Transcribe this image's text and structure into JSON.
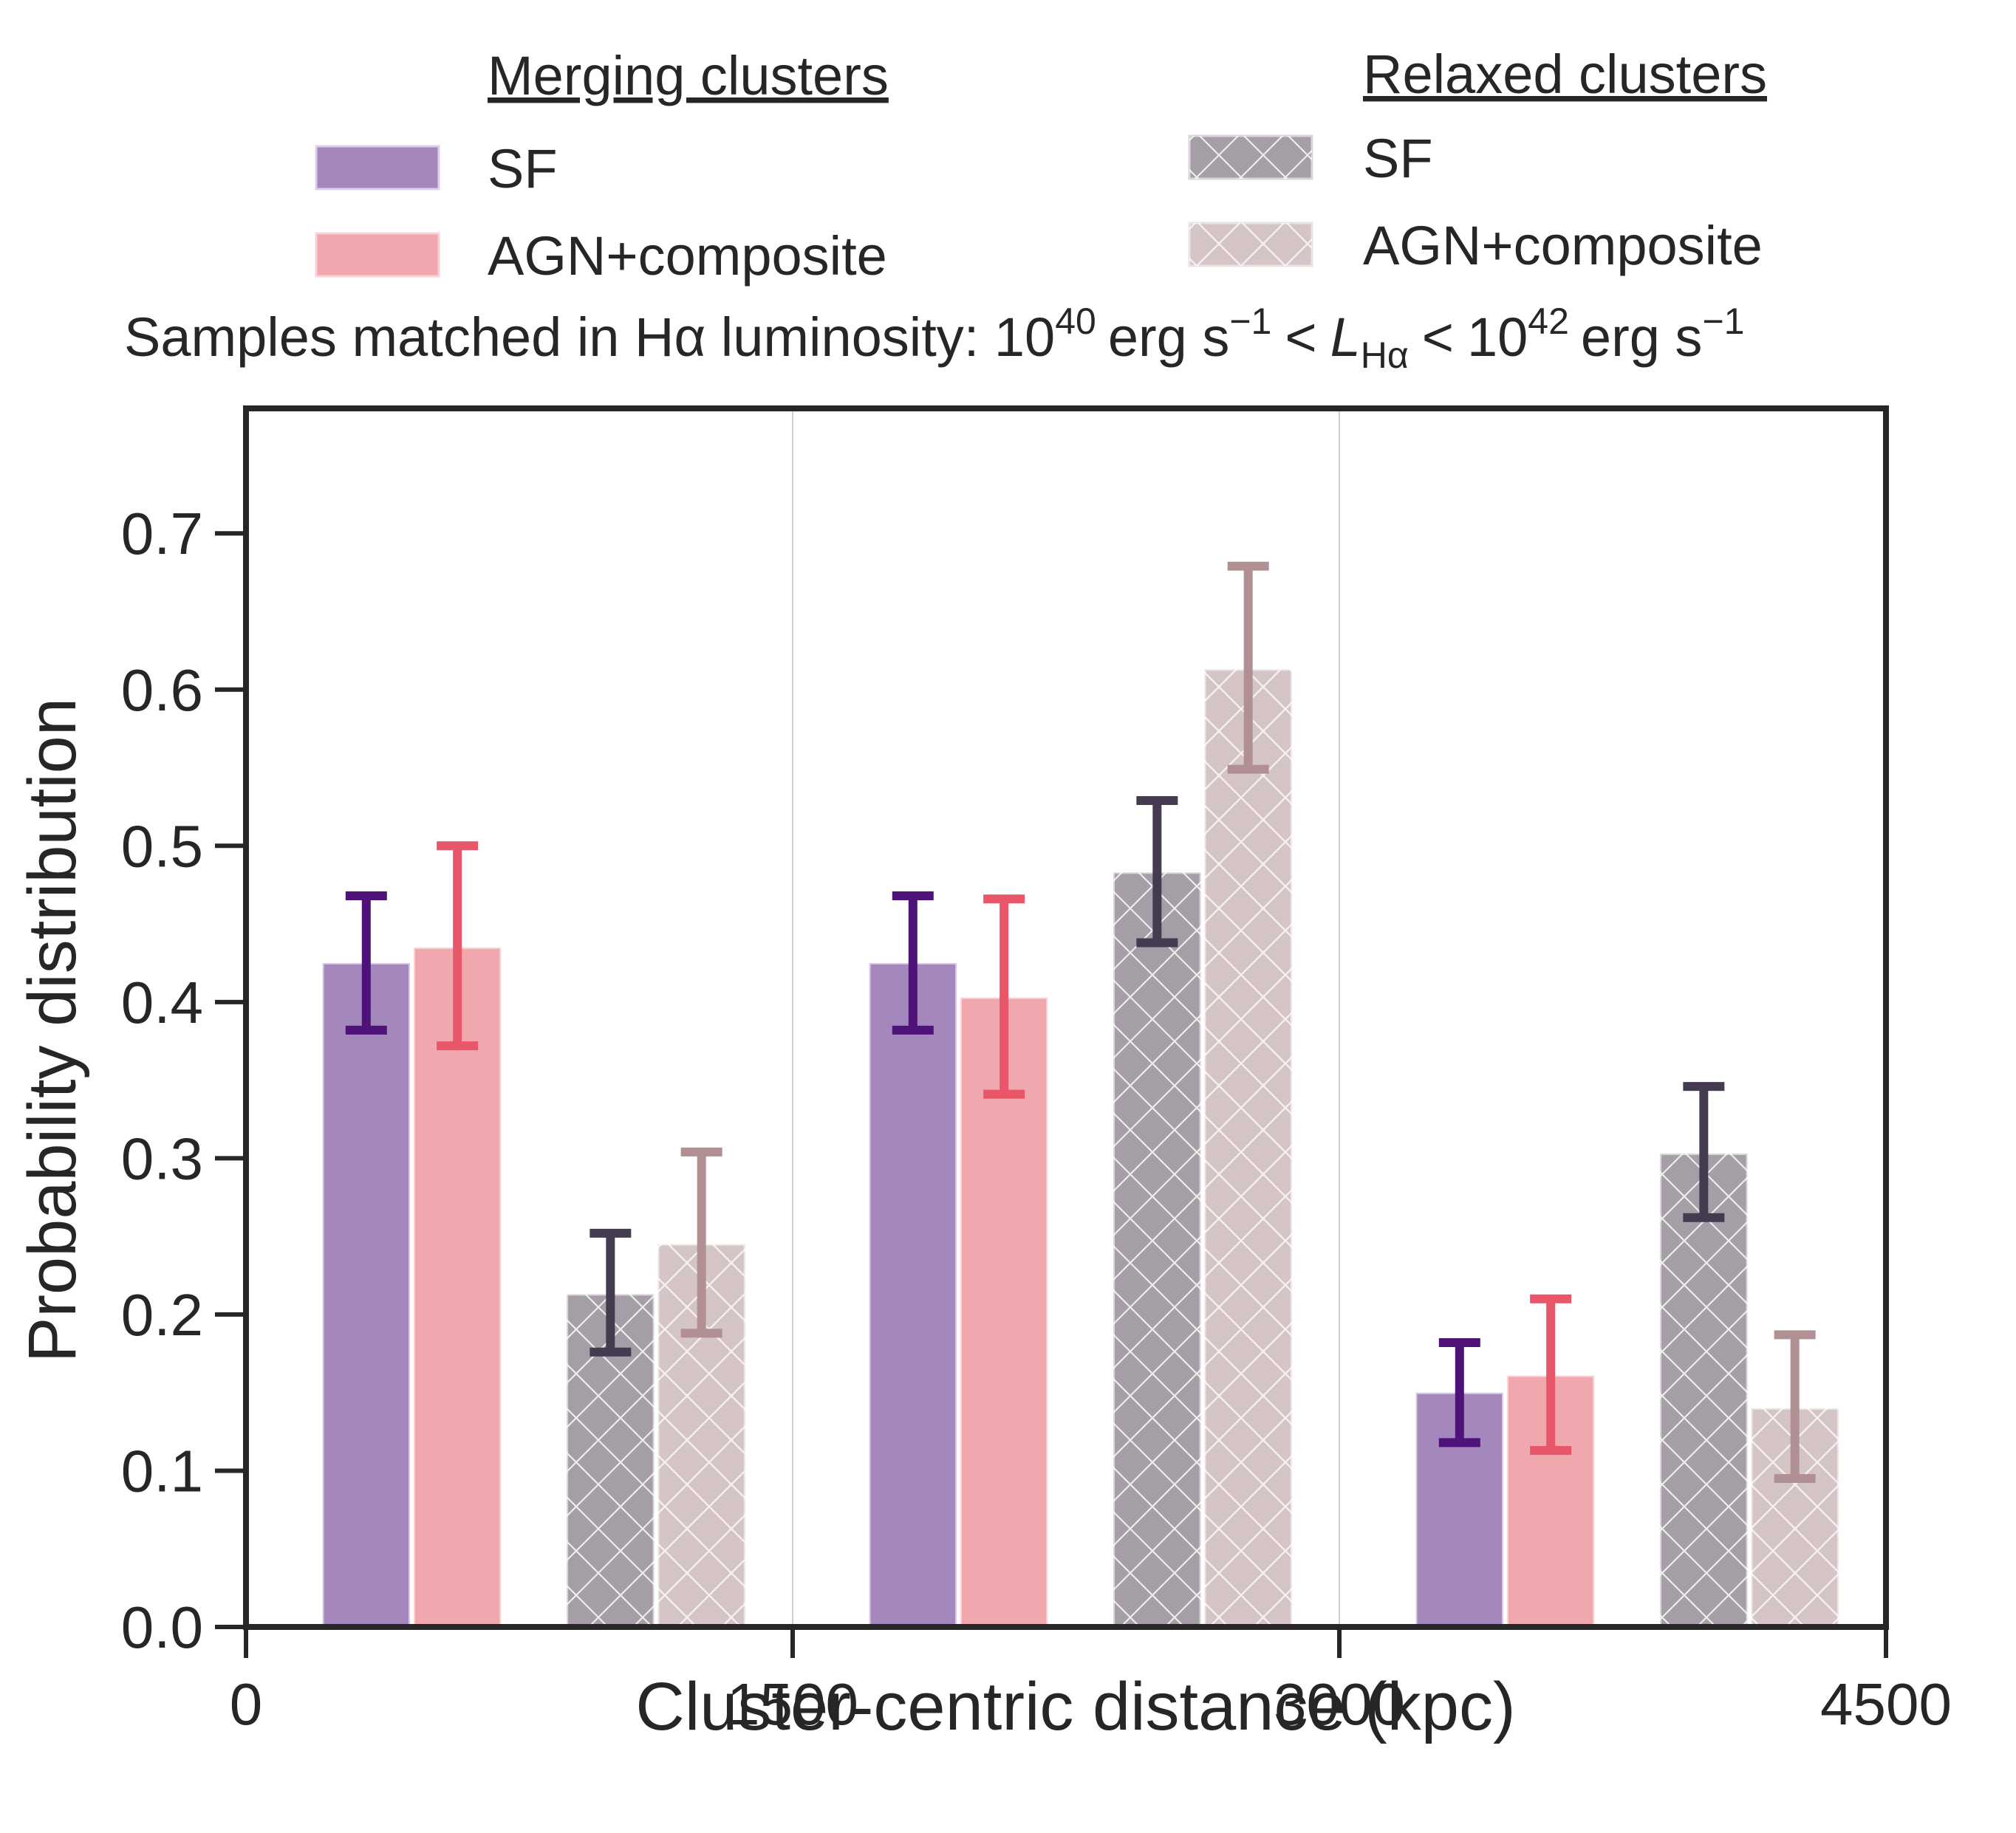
{
  "chart_data": {
    "type": "bar",
    "title_text": "Samples matched in Hα luminosity: ",
    "title_math": {
      "lower": "1040 erg s−1",
      "lower_base": "10",
      "lower_exp": "40",
      "unit": "erg s",
      "unit_exp": "−1",
      "lt": "<",
      "symbol": "L",
      "symbol_sub": "Hα",
      "upper_base": "10",
      "upper_exp": "42"
    },
    "xlabel": "Cluster-centric distance (kpc)",
    "ylabel": "Probability distribution",
    "xlim": [
      0,
      4500
    ],
    "ylim": [
      0,
      0.78
    ],
    "xticks": [
      0,
      1500,
      3000,
      4500
    ],
    "xtick_labels": [
      "0",
      "1500",
      "3000",
      "4500"
    ],
    "yticks": [
      0.0,
      0.1,
      0.2,
      0.3,
      0.4,
      0.5,
      0.6,
      0.7
    ],
    "ytick_labels": [
      "0.0",
      "0.1",
      "0.2",
      "0.3",
      "0.4",
      "0.5",
      "0.6",
      "0.7"
    ],
    "bin_edges": [
      0,
      1500,
      3000,
      4500
    ],
    "legend": {
      "merging": {
        "heading": "Merging clusters",
        "entries": [
          "SF",
          "AGN+composite"
        ]
      },
      "relaxed": {
        "heading": "Relaxed clusters",
        "entries": [
          "SF",
          "AGN+composite"
        ]
      }
    },
    "series": [
      {
        "name": "Merging SF",
        "group": "merging",
        "hatch": false,
        "color": "#a487bc",
        "err_color": "#4f1278",
        "centers": [
          330,
          1830,
          3330
        ],
        "values": [
          0.425,
          0.425,
          0.15
        ],
        "err_low": [
          0.382,
          0.382,
          0.118
        ],
        "err_high": [
          0.468,
          0.468,
          0.182
        ]
      },
      {
        "name": "Merging AGN+composite",
        "group": "merging",
        "hatch": false,
        "color": "#f1a7ae",
        "err_color": "#e8566a",
        "centers": [
          580,
          2080,
          3580
        ],
        "values": [
          0.435,
          0.403,
          0.161
        ],
        "err_low": [
          0.372,
          0.341,
          0.113
        ],
        "err_high": [
          0.5,
          0.466,
          0.21
        ]
      },
      {
        "name": "Relaxed SF",
        "group": "relaxed",
        "hatch": true,
        "color": "#a59ea6",
        "err_color": "#443b51",
        "centers": [
          1000,
          2500,
          4000
        ],
        "values": [
          0.213,
          0.483,
          0.303
        ],
        "err_low": [
          0.176,
          0.438,
          0.262
        ],
        "err_high": [
          0.252,
          0.529,
          0.346
        ]
      },
      {
        "name": "Relaxed AGN+composite",
        "group": "relaxed",
        "hatch": true,
        "color": "#d6c5c6",
        "err_color": "#b09093",
        "centers": [
          1250,
          2750,
          4250
        ],
        "values": [
          0.245,
          0.613,
          0.14
        ],
        "err_low": [
          0.188,
          0.549,
          0.095
        ],
        "err_high": [
          0.304,
          0.679,
          0.187
        ]
      }
    ]
  }
}
